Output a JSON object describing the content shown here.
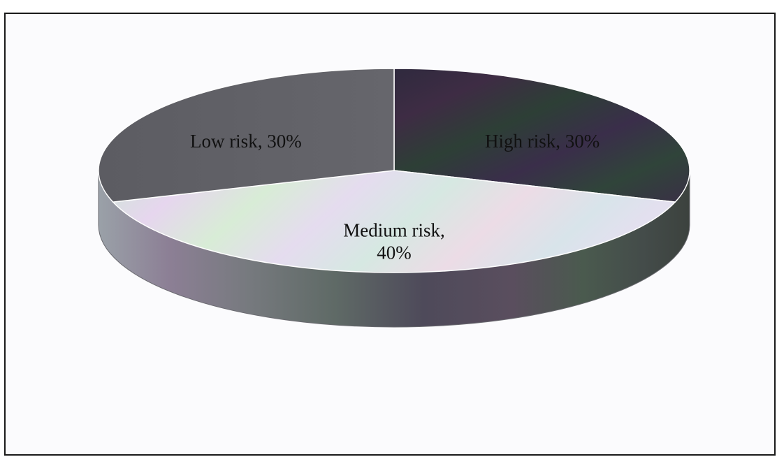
{
  "chart_data": {
    "type": "pie",
    "style": "3d",
    "title": "",
    "slices": [
      {
        "name": "High risk",
        "value": 30,
        "label": "High risk, 30%",
        "color": "#3a2f4a",
        "lines": [
          "High risk, 30%"
        ]
      },
      {
        "name": "Medium risk",
        "value": 40,
        "label": "Medium risk, 40%",
        "color": "#e6e4f3",
        "lines": [
          "Medium risk,",
          "40%"
        ]
      },
      {
        "name": "Low risk",
        "value": 30,
        "label": "Low risk, 30%",
        "color": "#5e5e66",
        "lines": [
          "Low risk, 30%"
        ]
      }
    ],
    "legend": "none"
  }
}
